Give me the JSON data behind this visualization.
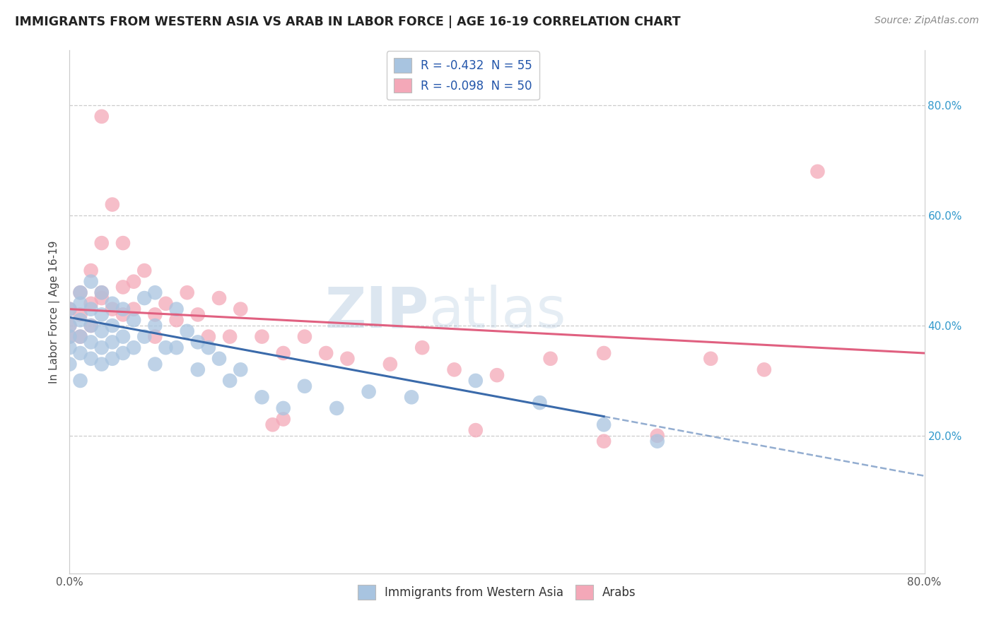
{
  "title": "IMMIGRANTS FROM WESTERN ASIA VS ARAB IN LABOR FORCE | AGE 16-19 CORRELATION CHART",
  "source": "Source: ZipAtlas.com",
  "ylabel": "In Labor Force | Age 16-19",
  "xlim": [
    0.0,
    0.8
  ],
  "ylim": [
    -0.05,
    0.9
  ],
  "legend_blue_label": "R = -0.432  N = 55",
  "legend_pink_label": "R = -0.098  N = 50",
  "legend_bottom_blue": "Immigrants from Western Asia",
  "legend_bottom_pink": "Arabs",
  "blue_color": "#A8C4E0",
  "pink_color": "#F4A8B8",
  "blue_line_color": "#3A6AAA",
  "pink_line_color": "#E06080",
  "watermark_zip": "ZIP",
  "watermark_atlas": "atlas",
  "background_color": "#FFFFFF",
  "grid_color": "#CCCCCC",
  "blue_scatter_x": [
    0.0,
    0.0,
    0.0,
    0.0,
    0.0,
    0.01,
    0.01,
    0.01,
    0.01,
    0.01,
    0.01,
    0.02,
    0.02,
    0.02,
    0.02,
    0.02,
    0.03,
    0.03,
    0.03,
    0.03,
    0.03,
    0.04,
    0.04,
    0.04,
    0.04,
    0.05,
    0.05,
    0.05,
    0.06,
    0.06,
    0.07,
    0.07,
    0.08,
    0.08,
    0.08,
    0.09,
    0.1,
    0.1,
    0.11,
    0.12,
    0.12,
    0.13,
    0.14,
    0.15,
    0.16,
    0.18,
    0.2,
    0.22,
    0.25,
    0.28,
    0.32,
    0.38,
    0.44,
    0.5,
    0.55
  ],
  "blue_scatter_y": [
    0.4,
    0.38,
    0.43,
    0.36,
    0.33,
    0.44,
    0.41,
    0.38,
    0.35,
    0.3,
    0.46,
    0.43,
    0.4,
    0.37,
    0.34,
    0.48,
    0.42,
    0.39,
    0.36,
    0.33,
    0.46,
    0.44,
    0.4,
    0.37,
    0.34,
    0.43,
    0.38,
    0.35,
    0.41,
    0.36,
    0.45,
    0.38,
    0.46,
    0.4,
    0.33,
    0.36,
    0.43,
    0.36,
    0.39,
    0.37,
    0.32,
    0.36,
    0.34,
    0.3,
    0.32,
    0.27,
    0.25,
    0.29,
    0.25,
    0.28,
    0.27,
    0.3,
    0.26,
    0.22,
    0.19
  ],
  "pink_scatter_x": [
    0.0,
    0.0,
    0.0,
    0.01,
    0.01,
    0.01,
    0.02,
    0.02,
    0.02,
    0.03,
    0.03,
    0.03,
    0.04,
    0.04,
    0.05,
    0.05,
    0.05,
    0.06,
    0.06,
    0.07,
    0.08,
    0.08,
    0.09,
    0.1,
    0.11,
    0.12,
    0.13,
    0.14,
    0.15,
    0.16,
    0.18,
    0.19,
    0.2,
    0.22,
    0.24,
    0.26,
    0.3,
    0.33,
    0.36,
    0.4,
    0.45,
    0.5,
    0.55,
    0.6,
    0.65,
    0.7,
    0.2,
    0.03,
    0.5,
    0.38
  ],
  "pink_scatter_y": [
    0.4,
    0.43,
    0.38,
    0.46,
    0.42,
    0.38,
    0.5,
    0.44,
    0.4,
    0.78,
    0.55,
    0.46,
    0.62,
    0.43,
    0.55,
    0.47,
    0.42,
    0.48,
    0.43,
    0.5,
    0.42,
    0.38,
    0.44,
    0.41,
    0.46,
    0.42,
    0.38,
    0.45,
    0.38,
    0.43,
    0.38,
    0.22,
    0.35,
    0.38,
    0.35,
    0.34,
    0.33,
    0.36,
    0.32,
    0.31,
    0.34,
    0.35,
    0.2,
    0.34,
    0.32,
    0.68,
    0.23,
    0.45,
    0.19,
    0.21
  ]
}
